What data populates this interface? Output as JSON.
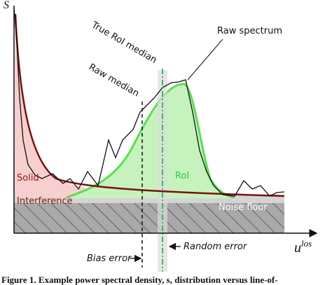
{
  "axes": {
    "y_label": "S",
    "x_label": "u",
    "x_label_superscript": "los"
  },
  "annotations": {
    "true_roi_median": "True RoI median",
    "raw_median": "Raw median",
    "raw_spectrum": "Raw spectrum",
    "bias_error": "Bias error",
    "random_error": "Random error"
  },
  "regions": {
    "solid": "Solid",
    "interference": "Interference",
    "roi": "RoI",
    "noise_floor": "Noise floor"
  },
  "caption": "Figure 1. Example power spectral density, s, distribution versus line-of-"
}
